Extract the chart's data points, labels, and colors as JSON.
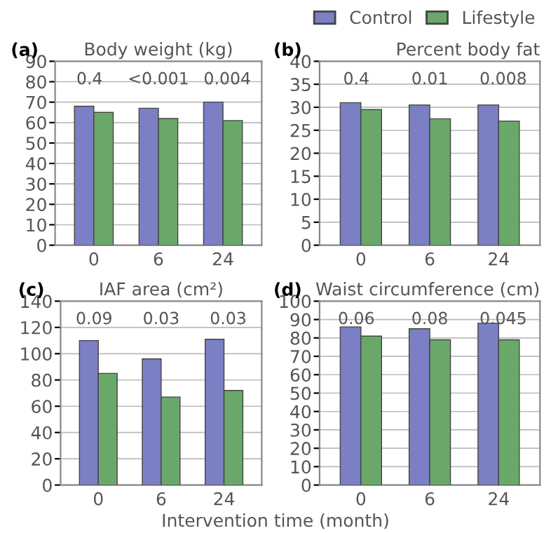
{
  "chart_data": [
    {
      "type": "bar",
      "title": "Body weight (kg)",
      "categories": [
        "0",
        "6",
        "24"
      ],
      "legend": "top right",
      "grid": "y",
      "ylim": [
        0,
        90
      ],
      "yticks": [
        0,
        10,
        20,
        30,
        40,
        50,
        60,
        70,
        80,
        90
      ],
      "series": [
        {
          "name": "Control",
          "color": "#7b7fc4",
          "values": [
            68,
            67,
            70
          ]
        },
        {
          "name": "Lifestyle",
          "color": "#6aa86a",
          "values": [
            65,
            62,
            61
          ]
        }
      ],
      "annotations": [
        "(a)",
        "0.4",
        "<0.001",
        "0.004"
      ]
    },
    {
      "type": "bar",
      "title": "Percent body fat",
      "categories": [
        "0",
        "6",
        "24"
      ],
      "grid": "y",
      "ylim": [
        0,
        40
      ],
      "yticks": [
        0,
        5,
        10,
        15,
        20,
        25,
        30,
        35,
        40
      ],
      "series": [
        {
          "color": "#7b7fc4",
          "values": [
            31,
            30.5,
            30.5
          ]
        },
        {
          "color": "#6aa86a",
          "values": [
            29.5,
            27.5,
            27
          ]
        }
      ],
      "annotations": [
        "(b)",
        "0.4",
        "0.01",
        "0.008"
      ]
    },
    {
      "type": "bar",
      "title": "IAF area (cm²)",
      "categories": [
        "0",
        "6",
        "24"
      ],
      "grid": "y",
      "ylim": [
        0,
        140
      ],
      "yticks": [
        0,
        20,
        40,
        60,
        80,
        100,
        120,
        140
      ],
      "series": [
        {
          "color": "#7b7fc4",
          "values": [
            110,
            96,
            111
          ]
        },
        {
          "color": "#6aa86a",
          "values": [
            85,
            67,
            72
          ]
        }
      ],
      "annotations": [
        "(c)",
        "0.09",
        "0.03",
        "0.03"
      ]
    },
    {
      "type": "bar",
      "title": "Waist circumference (cm)",
      "xlabel": "Intervention time (month)",
      "categories": [
        "0",
        "6",
        "24"
      ],
      "grid": "y",
      "ylim": [
        0,
        100
      ],
      "yticks": [
        0,
        10,
        20,
        30,
        40,
        50,
        60,
        70,
        80,
        90,
        100
      ],
      "series": [
        {
          "color": "#7b7fc4",
          "values": [
            86,
            85,
            88
          ]
        },
        {
          "color": "#6aa86a",
          "values": [
            81,
            79,
            79
          ]
        }
      ],
      "annotations": [
        "(d)",
        "0.06",
        "0.08",
        "0.045"
      ]
    }
  ]
}
